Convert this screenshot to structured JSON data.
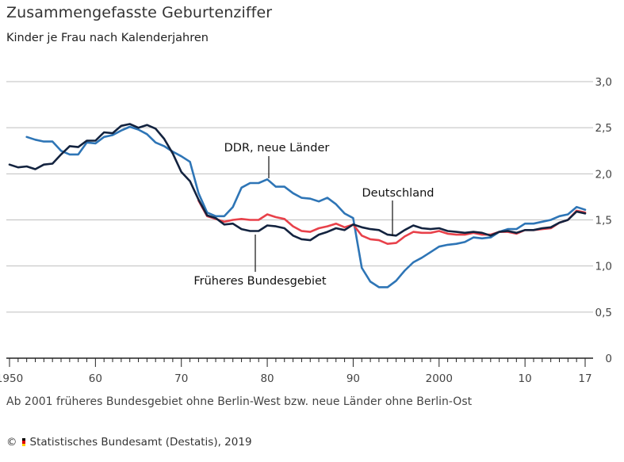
{
  "title": "Zusammengefasste Geburtenziffer",
  "subtitle": "Kinder je Frau nach Kalenderjahren",
  "note": "Ab 2001 früheres Bundesgebiet ohne Berlin-West bzw. neue Länder ohne Berlin-Ost",
  "source": {
    "copyright": "©",
    "text": "Statistisches Bundesamt (Destatis), 2019",
    "flag_colors": [
      "#000000",
      "#dd0000",
      "#ffce00"
    ]
  },
  "colors": {
    "deutschland": "#13233f",
    "frueheres_bundesgebiet": "#e8414a",
    "ddr_neue_laender": "#2e75b6",
    "grid": "#bfbfbf",
    "axis": "#222222"
  },
  "chart_data": {
    "type": "line",
    "x_tick_labels": [
      "1950",
      "60",
      "70",
      "80",
      "90",
      "2000",
      "10",
      "17"
    ],
    "x_ticks": [
      1950,
      1960,
      1970,
      1980,
      1990,
      2000,
      2010,
      2017
    ],
    "y_tick_labels": [
      "0",
      "0,5",
      "1,0",
      "1,5",
      "2,0",
      "2,5",
      "3,0"
    ],
    "y_ticks": [
      0,
      0.5,
      1.0,
      1.5,
      2.0,
      2.5,
      3.0
    ],
    "xlim": [
      1950,
      2017
    ],
    "ylim": [
      0,
      3.0
    ],
    "grid": true,
    "series": [
      {
        "name": "Deutschland",
        "color": "#13233f",
        "x": [
          1950,
          1951,
          1952,
          1953,
          1954,
          1955,
          1956,
          1957,
          1958,
          1959,
          1960,
          1961,
          1962,
          1963,
          1964,
          1965,
          1966,
          1967,
          1968,
          1969,
          1970,
          1971,
          1972,
          1973,
          1974,
          1975,
          1976,
          1977,
          1978,
          1979,
          1980,
          1981,
          1982,
          1983,
          1984,
          1985,
          1986,
          1987,
          1988,
          1989,
          1990,
          1991,
          1992,
          1993,
          1994,
          1995,
          1996,
          1997,
          1998,
          1999,
          2000,
          2001,
          2002,
          2003,
          2004,
          2005,
          2006,
          2007,
          2008,
          2009,
          2010,
          2011,
          2012,
          2013,
          2014,
          2015,
          2016,
          2017
        ],
        "values": [
          2.1,
          2.07,
          2.08,
          2.05,
          2.1,
          2.11,
          2.21,
          2.3,
          2.29,
          2.36,
          2.36,
          2.45,
          2.44,
          2.52,
          2.54,
          2.5,
          2.53,
          2.49,
          2.38,
          2.22,
          2.02,
          1.92,
          1.72,
          1.55,
          1.52,
          1.45,
          1.46,
          1.4,
          1.38,
          1.38,
          1.44,
          1.43,
          1.41,
          1.33,
          1.29,
          1.28,
          1.34,
          1.37,
          1.41,
          1.39,
          1.45,
          1.42,
          1.4,
          1.39,
          1.34,
          1.33,
          1.39,
          1.44,
          1.41,
          1.4,
          1.41,
          1.38,
          1.37,
          1.36,
          1.37,
          1.36,
          1.33,
          1.37,
          1.38,
          1.36,
          1.39,
          1.39,
          1.41,
          1.42,
          1.47,
          1.5,
          1.59,
          1.57
        ]
      },
      {
        "name": "Früheres Bundesgebiet",
        "color": "#e8414a",
        "x": [
          1972,
          1973,
          1974,
          1975,
          1976,
          1977,
          1978,
          1979,
          1980,
          1981,
          1982,
          1983,
          1984,
          1985,
          1986,
          1987,
          1988,
          1989,
          1990,
          1991,
          1992,
          1993,
          1994,
          1995,
          1996,
          1997,
          1998,
          1999,
          2000,
          2001,
          2002,
          2003,
          2004,
          2005,
          2006,
          2007,
          2008,
          2009,
          2010,
          2011,
          2012,
          2013,
          2014,
          2015,
          2016,
          2017
        ],
        "values": [
          1.71,
          1.54,
          1.51,
          1.48,
          1.5,
          1.51,
          1.5,
          1.5,
          1.56,
          1.53,
          1.51,
          1.43,
          1.38,
          1.37,
          1.41,
          1.43,
          1.46,
          1.42,
          1.45,
          1.33,
          1.29,
          1.28,
          1.24,
          1.25,
          1.32,
          1.37,
          1.36,
          1.36,
          1.38,
          1.35,
          1.34,
          1.34,
          1.36,
          1.34,
          1.34,
          1.37,
          1.37,
          1.35,
          1.39,
          1.39,
          1.4,
          1.41,
          1.47,
          1.5,
          1.6,
          1.58
        ]
      },
      {
        "name": "DDR, neue Länder",
        "color": "#2e75b6",
        "x": [
          1952,
          1953,
          1954,
          1955,
          1956,
          1957,
          1958,
          1959,
          1960,
          1961,
          1962,
          1963,
          1964,
          1965,
          1966,
          1967,
          1968,
          1969,
          1970,
          1971,
          1972,
          1973,
          1974,
          1975,
          1976,
          1977,
          1978,
          1979,
          1980,
          1981,
          1982,
          1983,
          1984,
          1985,
          1986,
          1987,
          1988,
          1989,
          1990,
          1991,
          1992,
          1993,
          1994,
          1995,
          1996,
          1997,
          1998,
          1999,
          2000,
          2001,
          2002,
          2003,
          2004,
          2005,
          2006,
          2007,
          2008,
          2009,
          2010,
          2011,
          2012,
          2013,
          2014,
          2015,
          2016,
          2017
        ],
        "values": [
          2.4,
          2.37,
          2.35,
          2.35,
          2.25,
          2.21,
          2.21,
          2.34,
          2.33,
          2.4,
          2.42,
          2.47,
          2.51,
          2.48,
          2.43,
          2.34,
          2.3,
          2.24,
          2.19,
          2.13,
          1.79,
          1.58,
          1.54,
          1.54,
          1.64,
          1.85,
          1.9,
          1.9,
          1.94,
          1.86,
          1.86,
          1.79,
          1.74,
          1.73,
          1.7,
          1.74,
          1.67,
          1.57,
          1.52,
          0.98,
          0.83,
          0.77,
          0.77,
          0.84,
          0.95,
          1.04,
          1.09,
          1.15,
          1.21,
          1.23,
          1.24,
          1.26,
          1.31,
          1.3,
          1.31,
          1.37,
          1.4,
          1.4,
          1.46,
          1.46,
          1.48,
          1.5,
          1.54,
          1.56,
          1.64,
          1.61
        ]
      }
    ],
    "annotations": [
      {
        "text": "DDR, neue Länder",
        "series": "DDR, neue Länder"
      },
      {
        "text": "Deutschland",
        "series": "Deutschland"
      },
      {
        "text": "Früheres Bundesgebiet",
        "series": "Früheres Bundesgebiet"
      }
    ]
  }
}
